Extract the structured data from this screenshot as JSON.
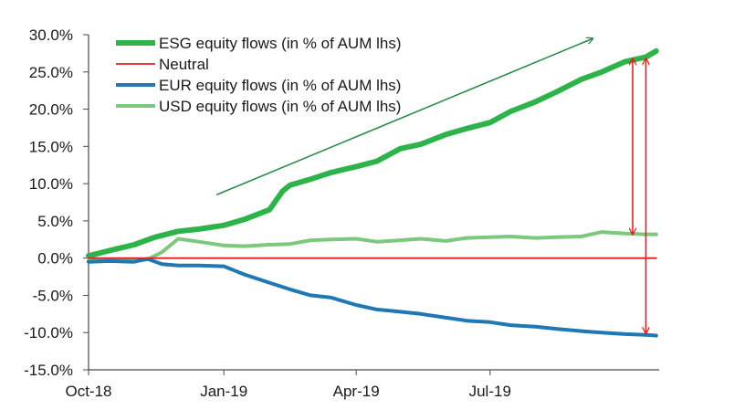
{
  "chart_data": {
    "type": "line",
    "yticks": [
      "30.0%",
      "25.0%",
      "20.0%",
      "15.0%",
      "10.0%",
      "5.0%",
      "0.0%",
      "-5.0%",
      "-10.0%",
      "-15.0%"
    ],
    "ytick_values": [
      30,
      25,
      20,
      15,
      10,
      5,
      0,
      -5,
      -10,
      -15
    ],
    "ylim": [
      -15,
      30
    ],
    "xticks": [
      "Oct-18",
      "Jan-19",
      "Apr-19",
      "Jul-19"
    ],
    "xtick_positions": [
      "2018-10-01",
      "2019-01-01",
      "2019-04-01",
      "2019-07-01"
    ],
    "xlim": [
      "2018-10-01",
      "2019-10-24"
    ],
    "grid": false,
    "legend_position": "top-left",
    "series": [
      {
        "name": "ESG equity flows (in % of AUM lhs)",
        "color": "#2db34a",
        "x": [
          "2018-10-01",
          "2018-10-15",
          "2018-11-01",
          "2018-11-15",
          "2018-12-01",
          "2018-12-15",
          "2019-01-01",
          "2019-01-15",
          "2019-02-01",
          "2019-02-10",
          "2019-02-15",
          "2019-03-01",
          "2019-03-15",
          "2019-04-01",
          "2019-04-15",
          "2019-05-01",
          "2019-05-15",
          "2019-06-01",
          "2019-06-15",
          "2019-07-01",
          "2019-07-15",
          "2019-08-01",
          "2019-08-15",
          "2019-09-01",
          "2019-09-15",
          "2019-10-01",
          "2019-10-15",
          "2019-10-22"
        ],
        "values": [
          0.3,
          1.0,
          1.8,
          2.8,
          3.6,
          3.9,
          4.4,
          5.2,
          6.5,
          9.0,
          9.8,
          10.6,
          11.5,
          12.3,
          13.0,
          14.7,
          15.3,
          16.6,
          17.4,
          18.2,
          19.7,
          21.0,
          22.3,
          24.0,
          25.0,
          26.4,
          27.0,
          27.8
        ]
      },
      {
        "name": "Neutral",
        "color": "#e02020",
        "x": [
          "2018-10-01",
          "2019-10-22"
        ],
        "values": [
          0,
          0
        ]
      },
      {
        "name": "EUR equity flows (in % of AUM lhs)",
        "color": "#1f77b4",
        "x": [
          "2018-10-01",
          "2018-10-15",
          "2018-11-01",
          "2018-11-10",
          "2018-11-20",
          "2018-12-01",
          "2018-12-15",
          "2019-01-01",
          "2019-01-15",
          "2019-02-01",
          "2019-02-15",
          "2019-03-01",
          "2019-03-15",
          "2019-04-01",
          "2019-04-15",
          "2019-05-01",
          "2019-05-15",
          "2019-06-01",
          "2019-06-15",
          "2019-07-01",
          "2019-07-15",
          "2019-08-01",
          "2019-08-15",
          "2019-09-01",
          "2019-09-15",
          "2019-10-01",
          "2019-10-15",
          "2019-10-22"
        ],
        "values": [
          -0.5,
          -0.4,
          -0.5,
          -0.1,
          -0.8,
          -1.0,
          -1.0,
          -1.1,
          -2.2,
          -3.3,
          -4.2,
          -5.0,
          -5.3,
          -6.3,
          -6.9,
          -7.2,
          -7.5,
          -8.0,
          -8.4,
          -8.6,
          -9.0,
          -9.2,
          -9.5,
          -9.8,
          -10.0,
          -10.2,
          -10.3,
          -10.4
        ]
      },
      {
        "name": "USD equity flows (in % of AUM lhs)",
        "color": "#7bc87e",
        "x": [
          "2018-10-01",
          "2018-10-15",
          "2018-11-01",
          "2018-11-10",
          "2018-11-20",
          "2018-12-01",
          "2018-12-15",
          "2019-01-01",
          "2019-01-15",
          "2019-02-01",
          "2019-02-15",
          "2019-03-01",
          "2019-03-15",
          "2019-04-01",
          "2019-04-15",
          "2019-05-01",
          "2019-05-15",
          "2019-06-01",
          "2019-06-15",
          "2019-07-01",
          "2019-07-15",
          "2019-08-01",
          "2019-08-15",
          "2019-09-01",
          "2019-09-15",
          "2019-10-01",
          "2019-10-15",
          "2019-10-22"
        ],
        "values": [
          -0.4,
          -0.2,
          -0.3,
          -0.2,
          0.8,
          2.6,
          2.2,
          1.7,
          1.6,
          1.8,
          1.9,
          2.4,
          2.5,
          2.6,
          2.2,
          2.4,
          2.6,
          2.3,
          2.7,
          2.8,
          2.9,
          2.7,
          2.8,
          2.9,
          3.5,
          3.3,
          3.2,
          3.2
        ]
      }
    ],
    "annotations": [
      {
        "type": "trend-arrow",
        "color": "#2a8a4a",
        "from": [
          "2018-12-27",
          8.5
        ],
        "to": [
          "2019-09-09",
          29.5
        ]
      },
      {
        "type": "double-arrow",
        "color": "#e02020",
        "x": "2019-10-06",
        "from": 3.2,
        "to": 26.8
      },
      {
        "type": "double-arrow",
        "color": "#e02020",
        "x": "2019-10-15",
        "from": -10.1,
        "to": 26.8
      }
    ]
  }
}
